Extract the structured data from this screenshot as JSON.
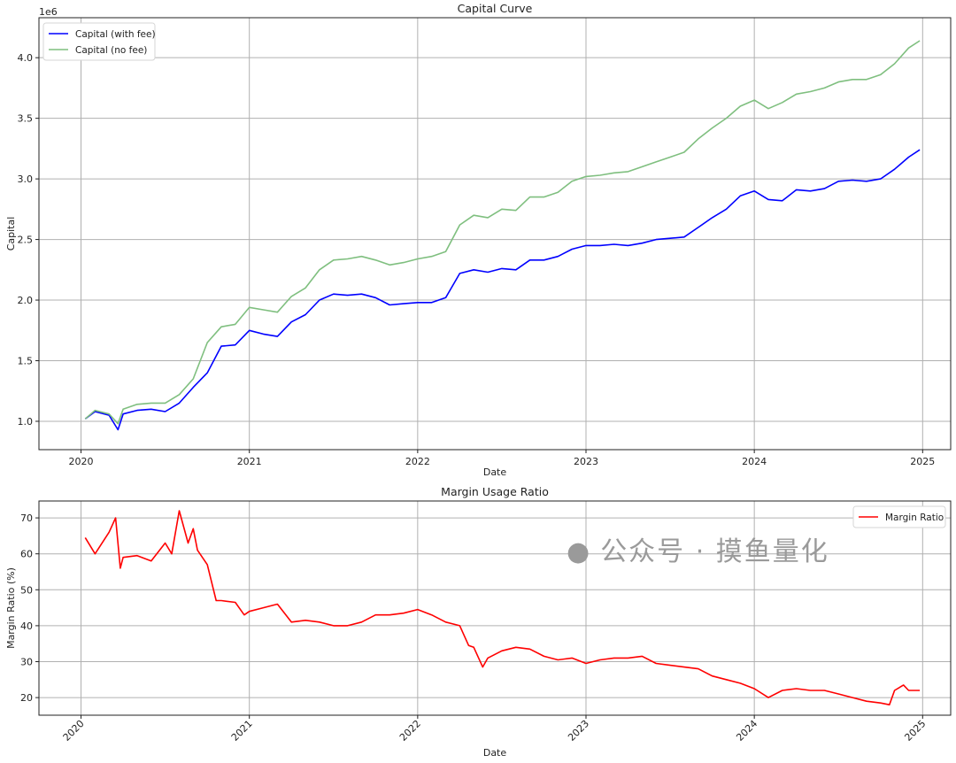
{
  "chart_data": [
    {
      "type": "line",
      "title": "Capital Curve",
      "xlabel": "Date",
      "ylabel": "Capital",
      "y_offset_label": "1e6",
      "xlim": [
        "2019-10",
        "2025-03"
      ],
      "ylim": [
        0.766,
        4.33
      ],
      "x_ticks": [
        "2020",
        "2021",
        "2022",
        "2023",
        "2024",
        "2025"
      ],
      "y_ticks": [
        "1.0",
        "1.5",
        "2.0",
        "2.5",
        "3.0",
        "3.5",
        "4.0"
      ],
      "grid": true,
      "legend": "top-left",
      "series": [
        {
          "name": "Capital (with fee)",
          "color": "#0000ff",
          "points": [
            [
              "2020-01-10",
              1.02
            ],
            [
              "2020-02",
              1.08
            ],
            [
              "2020-03",
              1.05
            ],
            [
              "2020-03-20",
              0.93
            ],
            [
              "2020-04",
              1.06
            ],
            [
              "2020-05",
              1.09
            ],
            [
              "2020-06",
              1.1
            ],
            [
              "2020-07",
              1.08
            ],
            [
              "2020-08",
              1.15
            ],
            [
              "2020-09",
              1.28
            ],
            [
              "2020-10",
              1.4
            ],
            [
              "2020-11",
              1.62
            ],
            [
              "2020-12",
              1.63
            ],
            [
              "2021-01",
              1.75
            ],
            [
              "2021-02",
              1.72
            ],
            [
              "2021-03",
              1.7
            ],
            [
              "2021-04",
              1.82
            ],
            [
              "2021-05",
              1.88
            ],
            [
              "2021-06",
              2.0
            ],
            [
              "2021-07",
              2.05
            ],
            [
              "2021-08",
              2.04
            ],
            [
              "2021-09",
              2.05
            ],
            [
              "2021-10",
              2.02
            ],
            [
              "2021-11",
              1.96
            ],
            [
              "2021-12",
              1.97
            ],
            [
              "2022-01",
              1.98
            ],
            [
              "2022-02",
              1.98
            ],
            [
              "2022-03",
              2.02
            ],
            [
              "2022-04",
              2.22
            ],
            [
              "2022-05",
              2.25
            ],
            [
              "2022-06",
              2.23
            ],
            [
              "2022-07",
              2.26
            ],
            [
              "2022-08",
              2.25
            ],
            [
              "2022-09",
              2.33
            ],
            [
              "2022-10",
              2.33
            ],
            [
              "2022-11",
              2.36
            ],
            [
              "2022-12",
              2.42
            ],
            [
              "2023-01",
              2.45
            ],
            [
              "2023-02",
              2.45
            ],
            [
              "2023-03",
              2.46
            ],
            [
              "2023-04",
              2.45
            ],
            [
              "2023-05",
              2.47
            ],
            [
              "2023-06",
              2.5
            ],
            [
              "2023-07",
              2.51
            ],
            [
              "2023-08",
              2.52
            ],
            [
              "2023-09",
              2.6
            ],
            [
              "2023-10",
              2.68
            ],
            [
              "2023-11",
              2.75
            ],
            [
              "2023-12",
              2.86
            ],
            [
              "2024-01",
              2.9
            ],
            [
              "2024-02",
              2.83
            ],
            [
              "2024-03",
              2.82
            ],
            [
              "2024-04",
              2.91
            ],
            [
              "2024-05",
              2.9
            ],
            [
              "2024-06",
              2.92
            ],
            [
              "2024-07",
              2.98
            ],
            [
              "2024-08",
              2.99
            ],
            [
              "2024-09",
              2.98
            ],
            [
              "2024-10",
              3.0
            ],
            [
              "2024-11",
              3.08
            ],
            [
              "2024-12",
              3.18
            ],
            [
              "2024-12-25",
              3.24
            ]
          ]
        },
        {
          "name": "Capital (no fee)",
          "color": "#7fbf7f",
          "points": [
            [
              "2020-01-10",
              1.02
            ],
            [
              "2020-02",
              1.09
            ],
            [
              "2020-03",
              1.06
            ],
            [
              "2020-03-20",
              0.98
            ],
            [
              "2020-04",
              1.1
            ],
            [
              "2020-05",
              1.14
            ],
            [
              "2020-06",
              1.15
            ],
            [
              "2020-07",
              1.15
            ],
            [
              "2020-08",
              1.22
            ],
            [
              "2020-09",
              1.35
            ],
            [
              "2020-10",
              1.65
            ],
            [
              "2020-11",
              1.78
            ],
            [
              "2020-12",
              1.8
            ],
            [
              "2021-01",
              1.94
            ],
            [
              "2021-02",
              1.92
            ],
            [
              "2021-03",
              1.9
            ],
            [
              "2021-04",
              2.03
            ],
            [
              "2021-05",
              2.1
            ],
            [
              "2021-06",
              2.25
            ],
            [
              "2021-07",
              2.33
            ],
            [
              "2021-08",
              2.34
            ],
            [
              "2021-09",
              2.36
            ],
            [
              "2021-10",
              2.33
            ],
            [
              "2021-11",
              2.29
            ],
            [
              "2021-12",
              2.31
            ],
            [
              "2022-01",
              2.34
            ],
            [
              "2022-02",
              2.36
            ],
            [
              "2022-03",
              2.4
            ],
            [
              "2022-04",
              2.62
            ],
            [
              "2022-05",
              2.7
            ],
            [
              "2022-06",
              2.68
            ],
            [
              "2022-07",
              2.75
            ],
            [
              "2022-08",
              2.74
            ],
            [
              "2022-09",
              2.85
            ],
            [
              "2022-10",
              2.85
            ],
            [
              "2022-11",
              2.89
            ],
            [
              "2022-12",
              2.98
            ],
            [
              "2023-01",
              3.02
            ],
            [
              "2023-02",
              3.03
            ],
            [
              "2023-03",
              3.05
            ],
            [
              "2023-04",
              3.06
            ],
            [
              "2023-05",
              3.1
            ],
            [
              "2023-06",
              3.14
            ],
            [
              "2023-07",
              3.18
            ],
            [
              "2023-08",
              3.22
            ],
            [
              "2023-09",
              3.33
            ],
            [
              "2023-10",
              3.42
            ],
            [
              "2023-11",
              3.5
            ],
            [
              "2023-12",
              3.6
            ],
            [
              "2024-01",
              3.65
            ],
            [
              "2024-02",
              3.58
            ],
            [
              "2024-03",
              3.63
            ],
            [
              "2024-04",
              3.7
            ],
            [
              "2024-05",
              3.72
            ],
            [
              "2024-06",
              3.75
            ],
            [
              "2024-07",
              3.8
            ],
            [
              "2024-08",
              3.82
            ],
            [
              "2024-09",
              3.82
            ],
            [
              "2024-10",
              3.86
            ],
            [
              "2024-11",
              3.95
            ],
            [
              "2024-12",
              4.08
            ],
            [
              "2024-12-25",
              4.14
            ]
          ]
        }
      ]
    },
    {
      "type": "line",
      "title": "Margin Usage Ratio",
      "xlabel": "Date",
      "ylabel": "Margin Ratio (%)",
      "xlim": [
        "2019-10",
        "2025-03"
      ],
      "ylim": [
        15.1,
        74.7
      ],
      "x_ticks": [
        "2020",
        "2021",
        "2022",
        "2023",
        "2024",
        "2025"
      ],
      "y_ticks": [
        "20",
        "30",
        "40",
        "50",
        "60",
        "70"
      ],
      "grid": true,
      "legend": "top-right",
      "series": [
        {
          "name": "Margin Ratio",
          "color": "#ff0000",
          "points": [
            [
              "2020-01-10",
              64.5
            ],
            [
              "2020-02",
              60
            ],
            [
              "2020-03",
              66
            ],
            [
              "2020-03-15",
              70
            ],
            [
              "2020-03-25",
              56
            ],
            [
              "2020-04",
              59
            ],
            [
              "2020-05",
              59.5
            ],
            [
              "2020-06",
              58
            ],
            [
              "2020-07",
              63
            ],
            [
              "2020-07-15",
              60
            ],
            [
              "2020-08",
              72
            ],
            [
              "2020-08-20",
              63
            ],
            [
              "2020-09",
              67
            ],
            [
              "2020-09-10",
              61
            ],
            [
              "2020-10",
              57
            ],
            [
              "2020-10-20",
              47
            ],
            [
              "2020-11",
              47
            ],
            [
              "2020-12",
              46.5
            ],
            [
              "2020-12-20",
              43
            ],
            [
              "2021-01",
              44
            ],
            [
              "2021-02",
              45
            ],
            [
              "2021-03",
              46
            ],
            [
              "2021-04",
              41
            ],
            [
              "2021-05",
              41.5
            ],
            [
              "2021-06",
              41
            ],
            [
              "2021-07",
              40
            ],
            [
              "2021-08",
              40
            ],
            [
              "2021-09",
              41
            ],
            [
              "2021-10",
              43
            ],
            [
              "2021-11",
              43
            ],
            [
              "2021-12",
              43.5
            ],
            [
              "2022-01",
              44.5
            ],
            [
              "2022-02",
              43
            ],
            [
              "2022-03",
              41
            ],
            [
              "2022-04",
              40
            ],
            [
              "2022-04-20",
              34.5
            ],
            [
              "2022-05",
              34
            ],
            [
              "2022-05-20",
              28.5
            ],
            [
              "2022-06",
              31
            ],
            [
              "2022-07",
              33
            ],
            [
              "2022-08",
              34
            ],
            [
              "2022-09",
              33.5
            ],
            [
              "2022-10",
              31.5
            ],
            [
              "2022-11",
              30.5
            ],
            [
              "2022-12",
              31
            ],
            [
              "2023-01",
              29.5
            ],
            [
              "2023-02",
              30.5
            ],
            [
              "2023-03",
              31
            ],
            [
              "2023-04",
              31
            ],
            [
              "2023-05",
              31.5
            ],
            [
              "2023-06",
              29.5
            ],
            [
              "2023-07",
              29
            ],
            [
              "2023-08",
              28.5
            ],
            [
              "2023-09",
              28
            ],
            [
              "2023-10",
              26
            ],
            [
              "2023-11",
              25
            ],
            [
              "2023-12",
              24
            ],
            [
              "2024-01",
              22.5
            ],
            [
              "2024-02",
              20
            ],
            [
              "2024-03",
              22
            ],
            [
              "2024-04",
              22.5
            ],
            [
              "2024-05",
              22
            ],
            [
              "2024-06",
              22
            ],
            [
              "2024-07",
              21
            ],
            [
              "2024-08",
              20
            ],
            [
              "2024-09",
              19
            ],
            [
              "2024-10",
              18.5
            ],
            [
              "2024-10-20",
              18
            ],
            [
              "2024-11",
              22
            ],
            [
              "2024-11-20",
              23.5
            ],
            [
              "2024-12",
              22
            ],
            [
              "2024-12-25",
              22
            ]
          ]
        }
      ]
    }
  ],
  "watermark": "公众号 · 摸鱼量化"
}
